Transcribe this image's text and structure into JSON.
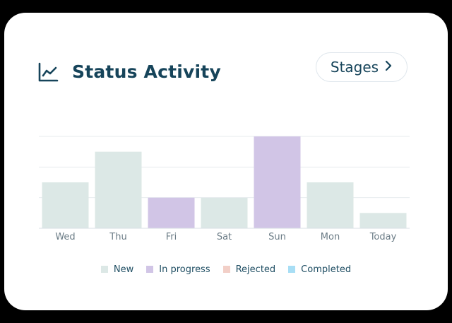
{
  "header": {
    "title": "Status Activity",
    "icon": "line-chart-icon",
    "stages_label": "Stages",
    "stages_icon": "chevron-right-icon"
  },
  "colors": {
    "New": "#dce8e6",
    "In progress": "#d1c5e6",
    "Rejected": "#f2cfc7",
    "Completed": "#a8def5",
    "text": "#16445a",
    "grid": "#e7ebee",
    "tick": "#6b7c86"
  },
  "chart_data": {
    "type": "bar",
    "categories": [
      "Wed",
      "Thu",
      "Fri",
      "Sat",
      "Sun",
      "Mon",
      "Today"
    ],
    "series": [
      {
        "name": "New",
        "values": [
          3,
          5,
          0,
          2,
          0,
          3,
          1
        ]
      },
      {
        "name": "In progress",
        "values": [
          0,
          0,
          2,
          0,
          6,
          0,
          0
        ]
      },
      {
        "name": "Rejected",
        "values": [
          0,
          0,
          0,
          0,
          0,
          0,
          0
        ]
      },
      {
        "name": "Completed",
        "values": [
          0,
          0,
          0,
          0,
          0,
          0,
          0
        ]
      }
    ],
    "ylim": [
      0,
      6
    ],
    "grid": true,
    "legend_position": "bottom",
    "title": "",
    "xlabel": "",
    "ylabel": ""
  }
}
